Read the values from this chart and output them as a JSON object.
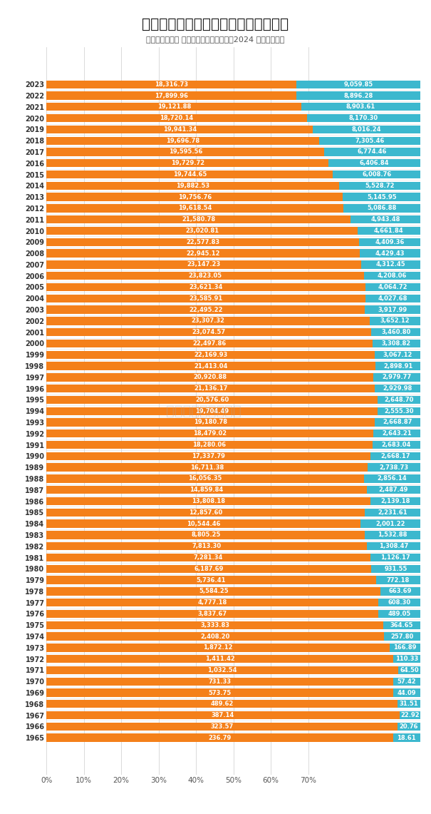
{
  "title": "经合组织和非经合组织核能发电量变化",
  "subtitle": "单位：亿千瓦时 来源：世界能源统计年鉴2024 制图：北海局",
  "years": [
    2023,
    2022,
    2021,
    2020,
    2019,
    2018,
    2017,
    2016,
    2015,
    2014,
    2013,
    2012,
    2011,
    2010,
    2009,
    2008,
    2007,
    2006,
    2005,
    2004,
    2003,
    2002,
    2001,
    2000,
    1999,
    1998,
    1997,
    1996,
    1995,
    1994,
    1993,
    1992,
    1991,
    1990,
    1989,
    1988,
    1987,
    1986,
    1985,
    1984,
    1983,
    1982,
    1981,
    1980,
    1979,
    1978,
    1977,
    1976,
    1975,
    1974,
    1973,
    1972,
    1971,
    1970,
    1969,
    1968,
    1967,
    1966,
    1965
  ],
  "oecd": [
    18316.73,
    17899.96,
    19121.88,
    18720.14,
    19941.34,
    19696.78,
    19595.56,
    19729.72,
    19744.65,
    19882.53,
    19756.76,
    19618.54,
    21580.78,
    23020.81,
    22577.83,
    22945.12,
    23147.23,
    23823.05,
    23621.34,
    23585.91,
    22495.22,
    23307.32,
    23074.57,
    22497.86,
    22169.93,
    21413.04,
    20920.88,
    21136.17,
    20576.6,
    19704.49,
    19180.78,
    18479.02,
    18280.06,
    17337.79,
    16711.38,
    16056.35,
    14859.84,
    13808.18,
    12857.6,
    10544.46,
    8805.25,
    7813.3,
    7281.34,
    6187.69,
    5736.41,
    5584.25,
    4777.18,
    3837.67,
    3333.83,
    2408.2,
    1872.12,
    1411.42,
    1032.54,
    731.33,
    573.75,
    489.62,
    387.14,
    323.57,
    236.79
  ],
  "non_oecd": [
    9059.85,
    8896.28,
    8903.61,
    8170.3,
    8016.24,
    7305.46,
    6774.46,
    6406.84,
    6008.76,
    5528.72,
    5145.95,
    5086.88,
    4943.48,
    4661.84,
    4409.36,
    4429.43,
    4312.45,
    4208.06,
    4064.72,
    4027.68,
    3917.99,
    3652.12,
    3460.8,
    3308.82,
    3067.12,
    2898.91,
    2979.77,
    2929.98,
    2648.7,
    2555.3,
    2668.87,
    2643.21,
    2683.04,
    2668.17,
    2738.73,
    2856.14,
    2487.49,
    2139.18,
    2231.61,
    2001.22,
    1532.88,
    1308.47,
    1126.17,
    931.55,
    772.18,
    663.69,
    608.3,
    489.05,
    364.65,
    257.8,
    166.89,
    110.33,
    64.5,
    57.42,
    44.09,
    31.51,
    22.92,
    20.76,
    18.61
  ],
  "oecd_color": "#F4801A",
  "non_oecd_color": "#3CB8CE",
  "bg_color": "#FFFFFF",
  "title_color": "#1A1A1A",
  "bar_height": 0.72,
  "value_fontsize": 6.0,
  "year_fontsize": 7.0,
  "watermark": "经济观智能分析平台",
  "xticks": [
    0.0,
    0.1,
    0.2,
    0.3,
    0.4,
    0.5,
    0.6,
    0.7
  ],
  "xtick_labels": [
    "0%",
    "10%",
    "20%",
    "30%",
    "40%",
    "50%",
    "60%",
    "70%"
  ]
}
